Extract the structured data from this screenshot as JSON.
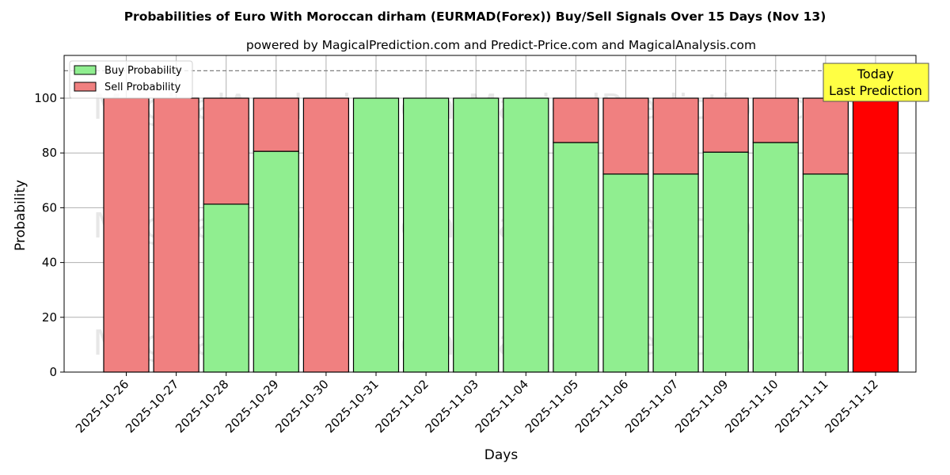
{
  "chart_data": {
    "type": "bar",
    "stacked": true,
    "title": "Probabilities of Euro With Moroccan dirham (EURMAD(Forex)) Buy/Sell Signals Over 15 Days (Nov 13)",
    "subtitle": "powered by MagicalPrediction.com and Predict-Price.com and MagicalAnalysis.com",
    "xlabel": "Days",
    "ylabel": "Probability",
    "ylim": [
      0,
      115
    ],
    "yticks": [
      0,
      20,
      40,
      60,
      80,
      100
    ],
    "grid": true,
    "legend_position": "upper left",
    "reference_line": {
      "y": 110,
      "style": "dashed",
      "color": "#808080"
    },
    "categories": [
      "2025-10-26",
      "2025-10-27",
      "2025-10-28",
      "2025-10-29",
      "2025-10-30",
      "2025-10-31",
      "2025-11-02",
      "2025-11-03",
      "2025-11-04",
      "2025-11-05",
      "2025-11-06",
      "2025-11-07",
      "2025-11-09",
      "2025-11-10",
      "2025-11-11",
      "2025-11-12"
    ],
    "series": [
      {
        "name": "Buy Probability",
        "color": "#90ee90",
        "values": [
          0,
          0,
          61.3,
          80.6,
          0,
          100,
          100,
          100,
          100,
          83.8,
          72.3,
          72.3,
          80.3,
          83.8,
          72.3,
          0
        ]
      },
      {
        "name": "Sell Probability",
        "color": "#f08080",
        "values": [
          100,
          100,
          38.7,
          19.4,
          100,
          0,
          0,
          0,
          0,
          16.2,
          27.7,
          27.7,
          19.7,
          16.2,
          27.7,
          100
        ]
      }
    ],
    "highlight": {
      "index": 15,
      "color": "#ff0000",
      "annotation": [
        "Today",
        "Last Prediction"
      ],
      "annotation_bg": "#ffff44"
    },
    "watermarks": [
      "MagicalAnalysis.com",
      "MagicalPrediction.com"
    ]
  }
}
